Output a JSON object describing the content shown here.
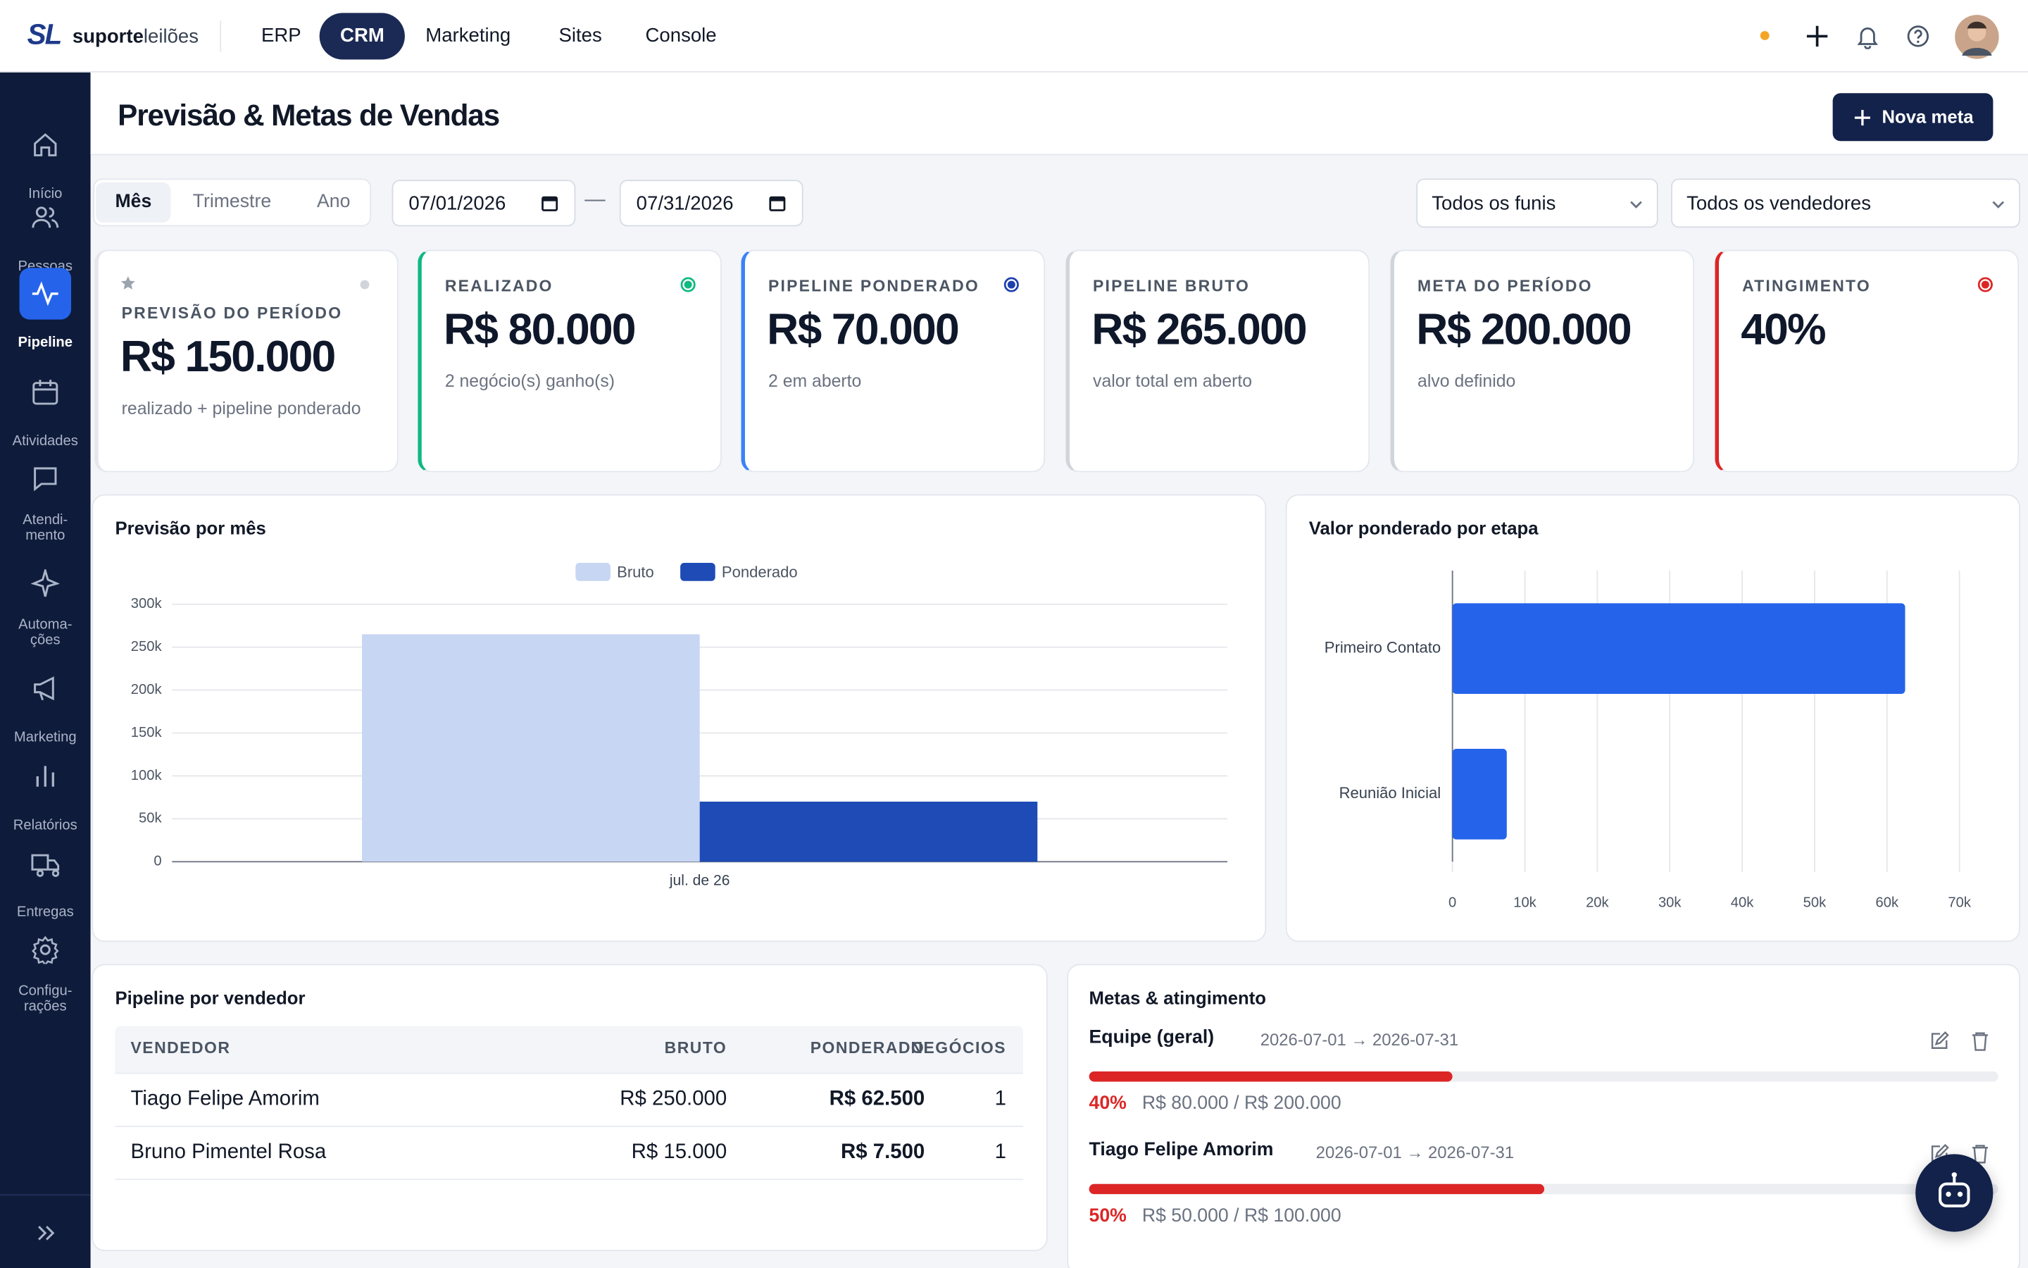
{
  "topbar": {
    "logo_mark": "SL",
    "brand_bold": "suporte",
    "brand_light": "leilões",
    "nav": [
      "ERP",
      "CRM",
      "Marketing",
      "Sites",
      "Console"
    ]
  },
  "sidebar": [
    "Início",
    "Pessoas",
    "Pipeline",
    "Atividades",
    "Atendi-\nmento",
    "Automa-\nções",
    "Marketing",
    "Relatórios",
    "Entregas",
    "Configu-\nrações"
  ],
  "header": {
    "title": "Previsão & Metas de Vendas",
    "button": "Nova meta"
  },
  "filters": {
    "periods": [
      "Mês",
      "Trimestre",
      "Ano"
    ],
    "date_from": "07/01/2026",
    "separator": "—",
    "date_to": "07/31/2026",
    "funnel": "Todos os funis",
    "seller": "Todos os vendedores"
  },
  "kpis": [
    {
      "label": "PREVISÃO DO PERÍODO",
      "value": "R$ 150.000",
      "note": "realizado + pipeline ponderado"
    },
    {
      "label": "REALIZADO",
      "value": "R$ 80.000",
      "note": "2 negócio(s) ganho(s)"
    },
    {
      "label": "PIPELINE PONDERADO",
      "value": "R$ 70.000",
      "note": "2 em aberto"
    },
    {
      "label": "PIPELINE BRUTO",
      "value": "R$ 265.000",
      "note": "valor total em aberto"
    },
    {
      "label": "META DO PERÍODO",
      "value": "R$ 200.000",
      "note": "alvo definido"
    },
    {
      "label": "ATINGIMENTO",
      "value": "40%"
    }
  ],
  "chart_data": [
    {
      "type": "bar",
      "title": "Previsão por mês",
      "categories": [
        "jul. de 26"
      ],
      "series": [
        {
          "name": "Bruto",
          "color": "#c7d6f2",
          "values": [
            265000
          ]
        },
        {
          "name": "Ponderado",
          "color": "#1e4bb5",
          "values": [
            70000
          ]
        }
      ],
      "ylim": [
        0,
        300000
      ],
      "yticks": [
        0,
        {
          "value": 50000,
          "label": "50k"
        },
        {
          "value": 100000,
          "label": "100k"
        },
        {
          "value": 150000,
          "label": "150k"
        },
        {
          "value": 200000,
          "label": "200k"
        },
        {
          "value": 250000,
          "label": "250k"
        },
        {
          "value": 300000,
          "label": "300k"
        }
      ],
      "grid": true,
      "legend": "top"
    },
    {
      "type": "barh",
      "title": "Valor ponderado por etapa",
      "categories": [
        "Primeiro Contato",
        "Reunião Inicial"
      ],
      "values": [
        62500,
        7500
      ],
      "color": "#2563eb",
      "xlim": [
        0,
        70000
      ],
      "xticks": [
        0,
        {
          "value": 10000,
          "label": "10k"
        },
        {
          "value": 20000,
          "label": "20k"
        },
        {
          "value": 30000,
          "label": "30k"
        },
        {
          "value": 40000,
          "label": "40k"
        },
        {
          "value": 50000,
          "label": "50k"
        },
        {
          "value": 60000,
          "label": "60k"
        },
        {
          "value": 70000,
          "label": "70k"
        }
      ],
      "grid": true
    }
  ],
  "table": {
    "title": "Pipeline por vendedor",
    "columns": [
      "VENDEDOR",
      "BRUTO",
      "PONDERADO",
      "NEGÓCIOS"
    ],
    "rows": [
      [
        "Tiago Felipe Amorim",
        "R$ 250.000",
        "R$ 62.500",
        "1"
      ],
      [
        "Bruno Pimentel Rosa",
        "R$ 15.000",
        "R$ 7.500",
        "1"
      ]
    ]
  },
  "goals": {
    "title": "Metas & atingimento",
    "items": [
      {
        "name": "Equipe (geral)",
        "period": "2026-07-01 → 2026-07-31",
        "percent": 40,
        "percent_label": "40%",
        "amount": "R$ 80.000 / R$ 200.000"
      },
      {
        "name": "Tiago Felipe Amorim",
        "period": "2026-07-01 → 2026-07-31",
        "percent": 50,
        "percent_label": "50%",
        "amount": "R$ 50.000 / R$ 100.000"
      }
    ]
  }
}
